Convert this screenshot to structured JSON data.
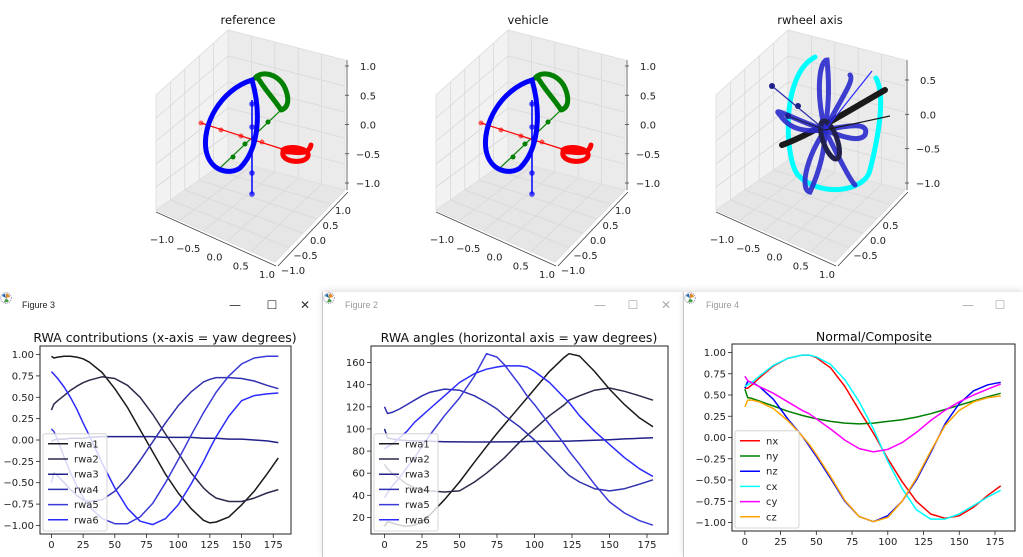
{
  "top_plots": [
    {
      "title": "reference",
      "z_ticks": [
        "1.0",
        "0.5",
        "0.0",
        "−0.5",
        "−1.0"
      ],
      "x_ticks": [
        "−1.0",
        "−0.5",
        "0.0",
        "0.5",
        "1.0"
      ],
      "y_ticks": [
        "1.0",
        "0.5",
        "0.0",
        "−0.5",
        "−1.0"
      ]
    },
    {
      "title": "vehicle",
      "z_ticks": [
        "1.0",
        "0.5",
        "0.0",
        "−0.5",
        "−1.0"
      ],
      "x_ticks": [
        "−1.0",
        "−0.5",
        "0.0",
        "0.5",
        "1.0"
      ],
      "y_ticks": [
        "1.0",
        "0.5",
        "0.0",
        "−0.5",
        "−1.0"
      ]
    },
    {
      "title": "rwheel axis",
      "z_ticks": [
        "0.5",
        "0.0",
        "−0.5",
        "−1.0"
      ],
      "x_ticks": [
        "−1.0",
        "−0.5",
        "0.0",
        "0.5",
        "1.0"
      ],
      "y_ticks": [
        "0.5",
        "0.0",
        "−0.5"
      ]
    }
  ],
  "windows": [
    {
      "title": "Figure 3",
      "active": true,
      "buttons": {
        "minimize": "—",
        "maximize": "☐",
        "close": "✕"
      }
    },
    {
      "title": "Figure 2",
      "active": false,
      "buttons": {
        "minimize": "—",
        "maximize": "☐",
        "close": "✕"
      }
    },
    {
      "title": "Figure 4",
      "active": false,
      "buttons": {
        "minimize": "—",
        "maximize": "☐"
      }
    }
  ],
  "colors": {
    "red": "#ff0000",
    "green": "#008000",
    "blue": "#0000ff",
    "cyan": "#00ffff",
    "magenta": "#ff00ff",
    "orange": "#ffa500"
  },
  "chart_data": [
    {
      "type": "line",
      "title": "RWA contributions (x-axis = yaw degrees)",
      "xlabel": "",
      "ylabel": "",
      "xlim": [
        -9,
        189
      ],
      "ylim": [
        -1.1,
        1.1
      ],
      "x_ticks": [
        "0",
        "25",
        "50",
        "75",
        "100",
        "125",
        "150",
        "175"
      ],
      "x_tick_values": [
        0,
        25,
        50,
        75,
        100,
        125,
        150,
        175
      ],
      "y_ticks": [
        "1.00",
        "0.75",
        "0.50",
        "0.25",
        "0.00",
        "−0.25",
        "−0.50",
        "−0.75",
        "−1.00"
      ],
      "y_tick_values": [
        1,
        0.75,
        0.5,
        0.25,
        0,
        -0.25,
        -0.5,
        -0.75,
        -1
      ],
      "legend": "lower-left",
      "x": [
        0,
        2,
        5,
        10,
        15,
        20,
        25,
        30,
        40,
        50,
        60,
        70,
        80,
        90,
        100,
        110,
        120,
        125,
        130,
        140,
        150,
        160,
        170,
        179
      ],
      "series": [
        {
          "name": "rwa1",
          "color": "#1a1a1a",
          "values": [
            0.98,
            0.96,
            0.97,
            0.98,
            0.98,
            0.97,
            0.95,
            0.91,
            0.79,
            0.6,
            0.38,
            0.12,
            -0.14,
            -0.4,
            -0.62,
            -0.8,
            -0.94,
            -0.97,
            -0.96,
            -0.9,
            -0.76,
            -0.6,
            -0.4,
            -0.21
          ]
        },
        {
          "name": "rwa2",
          "color": "#2a2a4a",
          "values": [
            0.35,
            0.42,
            0.46,
            0.52,
            0.58,
            0.63,
            0.67,
            0.7,
            0.74,
            0.72,
            0.64,
            0.5,
            0.3,
            0.07,
            -0.15,
            -0.38,
            -0.56,
            -0.63,
            -0.68,
            -0.72,
            -0.72,
            -0.68,
            -0.62,
            -0.58
          ]
        },
        {
          "name": "rwa3",
          "color": "#20208a",
          "values": [
            -0.02,
            0.0,
            0.01,
            0.01,
            0.02,
            0.02,
            0.02,
            0.03,
            0.04,
            0.04,
            0.04,
            0.04,
            0.04,
            0.03,
            0.03,
            0.03,
            0.02,
            0.02,
            0.02,
            0.01,
            0.01,
            0.0,
            -0.01,
            -0.03
          ]
        },
        {
          "name": "rwa4",
          "color": "#3030b0",
          "values": [
            -0.5,
            -0.38,
            -0.42,
            -0.5,
            -0.58,
            -0.65,
            -0.7,
            -0.72,
            -0.7,
            -0.6,
            -0.44,
            -0.24,
            -0.02,
            0.2,
            0.4,
            0.56,
            0.68,
            0.71,
            0.73,
            0.73,
            0.72,
            0.69,
            0.64,
            0.6
          ]
        },
        {
          "name": "rwa5",
          "color": "#3a3ad8",
          "values": [
            0.13,
            0.1,
            0.0,
            -0.2,
            -0.38,
            -0.54,
            -0.67,
            -0.78,
            -0.92,
            -0.98,
            -0.98,
            -0.9,
            -0.74,
            -0.5,
            -0.23,
            0.05,
            0.32,
            0.44,
            0.56,
            0.75,
            0.89,
            0.96,
            0.98,
            0.98
          ]
        },
        {
          "name": "rwa6",
          "color": "#2a2aff",
          "values": [
            0.8,
            0.77,
            0.72,
            0.62,
            0.5,
            0.36,
            0.2,
            0.05,
            -0.27,
            -0.56,
            -0.8,
            -0.95,
            -0.99,
            -0.92,
            -0.76,
            -0.52,
            -0.25,
            -0.1,
            0.04,
            0.28,
            0.46,
            0.52,
            0.54,
            0.55
          ]
        }
      ]
    },
    {
      "type": "line",
      "title": "RWA angles (horizontal axis = yaw degrees)",
      "xlabel": "",
      "ylabel": "",
      "xlim": [
        -9,
        189
      ],
      "ylim": [
        5,
        175
      ],
      "x_ticks": [
        "0",
        "25",
        "50",
        "75",
        "100",
        "125",
        "150",
        "175"
      ],
      "x_tick_values": [
        0,
        25,
        50,
        75,
        100,
        125,
        150,
        175
      ],
      "y_ticks": [
        "160",
        "140",
        "120",
        "100",
        "80",
        "60",
        "40",
        "20"
      ],
      "y_tick_values": [
        160,
        140,
        120,
        100,
        80,
        60,
        40,
        20
      ],
      "legend": "lower-left",
      "x": [
        0,
        2,
        5,
        10,
        15,
        20,
        25,
        30,
        40,
        50,
        60,
        68,
        75,
        80,
        90,
        95,
        100,
        110,
        120,
        123,
        130,
        140,
        150,
        160,
        170,
        179
      ],
      "series": [
        {
          "name": "rwa1",
          "color": "#1a1a1a",
          "values": [
            12,
            16,
            15,
            13,
            12,
            13,
            16,
            22,
            36,
            52,
            70,
            84,
            96,
            104,
            120,
            128,
            136,
            152,
            165,
            168,
            166,
            152,
            136,
            122,
            110,
            102
          ]
        },
        {
          "name": "rwa2",
          "color": "#2a2a4a",
          "values": [
            68,
            64,
            60,
            55,
            50,
            47,
            45,
            44,
            43,
            44,
            52,
            60,
            68,
            74,
            88,
            94,
            100,
            112,
            122,
            126,
            130,
            135,
            137,
            134,
            130,
            126
          ]
        },
        {
          "name": "rwa3",
          "color": "#20208a",
          "values": [
            100,
            92,
            91,
            90,
            89.5,
            89.3,
            89,
            88.8,
            88.5,
            88.3,
            88.2,
            88.2,
            88.3,
            88.3,
            88.5,
            88.6,
            88.7,
            88.8,
            89,
            89,
            89.3,
            89.8,
            90.3,
            91,
            91.5,
            92
          ]
        },
        {
          "name": "rwa4",
          "color": "#3030b0",
          "values": [
            120,
            114,
            115,
            118,
            122,
            126,
            130,
            133,
            136,
            135,
            130,
            124,
            118,
            112,
            102,
            96,
            90,
            76,
            62,
            58,
            52,
            46,
            44,
            46,
            50,
            54
          ]
        },
        {
          "name": "rwa5",
          "color": "#3a3ad8",
          "values": [
            38,
            42,
            48,
            56,
            65,
            74,
            84,
            94,
            112,
            128,
            148,
            168,
            165,
            158,
            140,
            130,
            122,
            104,
            86,
            80,
            68,
            50,
            34,
            24,
            17,
            13
          ]
        },
        {
          "name": "rwa6",
          "color": "#2a2aff",
          "values": [
            82,
            84,
            86,
            92,
            98,
            106,
            112,
            118,
            130,
            142,
            150,
            154,
            156,
            157,
            157,
            156,
            152,
            142,
            128,
            124,
            112,
            98,
            86,
            74,
            64,
            57
          ]
        }
      ]
    },
    {
      "type": "line",
      "title": "Normal/Composite",
      "xlabel": "",
      "ylabel": "",
      "xlim": [
        -9,
        189
      ],
      "ylim": [
        -1.1,
        1.1
      ],
      "x_ticks": [
        "0",
        "25",
        "50",
        "75",
        "100",
        "125",
        "150",
        "175"
      ],
      "x_tick_values": [
        0,
        25,
        50,
        75,
        100,
        125,
        150,
        175
      ],
      "y_ticks": [
        "1.00",
        "0.75",
        "0.50",
        "0.25",
        "0.00",
        "−0.25",
        "−0.50",
        "−0.75",
        "−1.00"
      ],
      "y_tick_values": [
        1,
        0.75,
        0.5,
        0.25,
        0,
        -0.25,
        -0.5,
        -0.75,
        -1
      ],
      "legend": "lower-left",
      "x": [
        0,
        2,
        5,
        10,
        20,
        30,
        40,
        45,
        50,
        60,
        70,
        80,
        90,
        100,
        110,
        120,
        130,
        140,
        150,
        160,
        170,
        179
      ],
      "series": [
        {
          "name": "nx",
          "color": "#ff0000",
          "values": [
            0.58,
            0.58,
            0.62,
            0.7,
            0.84,
            0.93,
            0.97,
            0.97,
            0.94,
            0.82,
            0.6,
            0.32,
            0.05,
            -0.25,
            -0.52,
            -0.75,
            -0.9,
            -0.95,
            -0.92,
            -0.82,
            -0.68,
            -0.57
          ]
        },
        {
          "name": "ny",
          "color": "#008000",
          "values": [
            0.57,
            0.47,
            0.46,
            0.43,
            0.37,
            0.31,
            0.26,
            0.24,
            0.22,
            0.19,
            0.17,
            0.16,
            0.17,
            0.19,
            0.21,
            0.24,
            0.28,
            0.33,
            0.38,
            0.43,
            0.48,
            0.52
          ]
        },
        {
          "name": "nz",
          "color": "#0000ff",
          "values": [
            0.58,
            0.66,
            0.65,
            0.6,
            0.45,
            0.22,
            0.02,
            -0.1,
            -0.22,
            -0.48,
            -0.75,
            -0.93,
            -0.99,
            -0.92,
            -0.75,
            -0.5,
            -0.18,
            0.16,
            0.4,
            0.55,
            0.62,
            0.65
          ]
        },
        {
          "name": "cx",
          "color": "#00ffff",
          "values": [
            0.6,
            0.62,
            0.65,
            0.72,
            0.85,
            0.93,
            0.97,
            0.97,
            0.95,
            0.86,
            0.68,
            0.42,
            0.1,
            -0.28,
            -0.6,
            -0.85,
            -0.96,
            -0.96,
            -0.9,
            -0.8,
            -0.7,
            -0.62
          ]
        },
        {
          "name": "cy",
          "color": "#ff00ff",
          "values": [
            0.72,
            0.67,
            0.64,
            0.6,
            0.52,
            0.42,
            0.32,
            0.28,
            0.22,
            0.1,
            -0.03,
            -0.13,
            -0.17,
            -0.14,
            -0.06,
            0.06,
            0.2,
            0.32,
            0.42,
            0.5,
            0.57,
            0.63
          ]
        },
        {
          "name": "cz",
          "color": "#ffa500",
          "values": [
            0.36,
            0.44,
            0.44,
            0.42,
            0.34,
            0.2,
            0.02,
            -0.08,
            -0.2,
            -0.46,
            -0.74,
            -0.93,
            -0.99,
            -0.94,
            -0.75,
            -0.48,
            -0.16,
            0.14,
            0.32,
            0.42,
            0.47,
            0.49
          ]
        }
      ]
    }
  ]
}
